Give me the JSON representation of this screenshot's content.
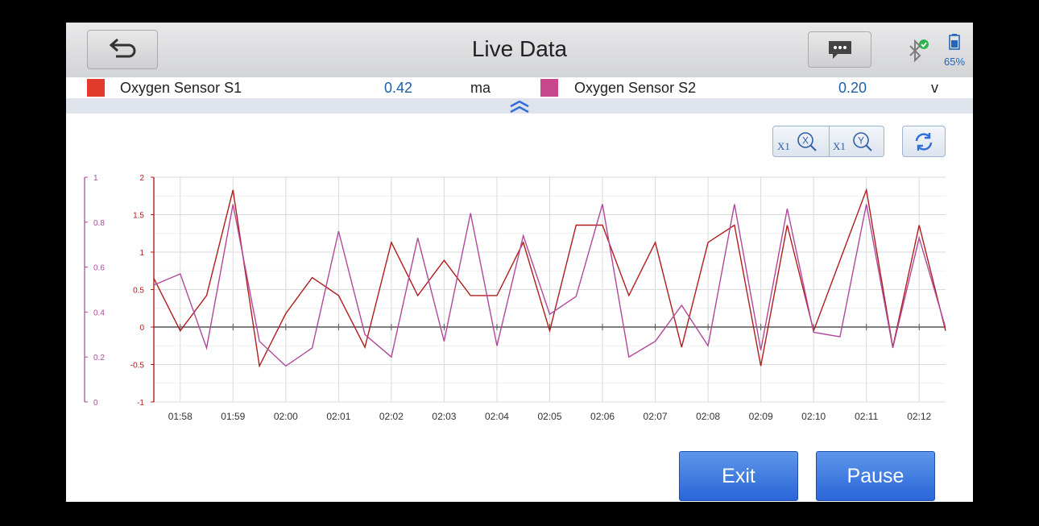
{
  "header": {
    "title": "Live Data",
    "battery_percent": "65%",
    "bluetooth_connected": true
  },
  "legend": [
    {
      "name": "Oxygen Sensor S1",
      "value": "0.42",
      "unit": "ma",
      "color": "#e23a2c"
    },
    {
      "name": "Oxygen Sensor S2",
      "value": "0.20",
      "unit": "v",
      "color": "#c8468c"
    }
  ],
  "toolbar": {
    "zoom_x_label": "X1",
    "zoom_y_label": "X1"
  },
  "buttons": {
    "exit_label": "Exit",
    "pause_label": "Pause"
  },
  "colors": {
    "accent": "#2f6fdc",
    "series1": "#b01c1c",
    "series2": "#b0489a"
  },
  "chart_data": {
    "type": "line",
    "x_ticks": [
      "01:58",
      "01:59",
      "02:00",
      "02:01",
      "02:02",
      "02:03",
      "02:04",
      "02:05",
      "02:06",
      "02:07",
      "02:08",
      "02:09",
      "02:10",
      "02:11",
      "02:12"
    ],
    "x_range": [
      "01:57.5",
      "02:12.5"
    ],
    "y_left": {
      "ticks": [
        "2",
        "1.5",
        "1",
        "0.5",
        "0",
        "-0.5",
        "-1"
      ],
      "ylim": [
        -1,
        2
      ]
    },
    "y_right": {
      "ticks": [
        "1",
        "0.8",
        "0.6",
        "0.4",
        "0.2",
        "0"
      ],
      "ylim": [
        0,
        1
      ]
    },
    "grid": true,
    "series": [
      {
        "axis": "left",
        "color": "#b01c1c",
        "x": [
          0,
          0.5,
          1,
          1.5,
          2,
          2.5,
          3,
          3.5,
          4,
          4.5,
          5,
          5.5,
          6,
          6.5,
          7,
          7.5,
          8,
          8.5,
          9,
          9.5,
          10,
          10.5,
          11,
          11.5,
          12,
          12.5,
          13,
          13.5,
          14,
          14.5,
          15
        ],
        "values": [
          0.65,
          -0.05,
          0.42,
          1.83,
          -0.52,
          0.18,
          0.66,
          0.42,
          -0.27,
          1.13,
          0.42,
          0.89,
          0.42,
          0.42,
          1.13,
          -0.05,
          1.36,
          1.36,
          0.42,
          1.13,
          -0.27,
          1.13,
          1.36,
          -0.52,
          1.36,
          -0.05,
          0.89,
          1.83,
          -0.27,
          1.36,
          -0.05
        ]
      },
      {
        "axis": "right",
        "color": "#b0489a",
        "x": [
          0,
          0.5,
          1,
          1.5,
          2,
          2.5,
          3,
          3.5,
          4,
          4.5,
          5,
          5.5,
          6,
          6.5,
          7,
          7.5,
          8,
          8.5,
          9,
          9.5,
          10,
          10.5,
          11,
          11.5,
          12,
          12.5,
          13,
          13.5,
          14,
          14.5,
          15
        ],
        "values": [
          0.52,
          0.57,
          0.24,
          0.88,
          0.27,
          0.16,
          0.24,
          0.76,
          0.3,
          0.2,
          0.73,
          0.27,
          0.84,
          0.25,
          0.74,
          0.39,
          0.47,
          0.88,
          0.2,
          0.27,
          0.43,
          0.25,
          0.88,
          0.23,
          0.86,
          0.31,
          0.29,
          0.88,
          0.24,
          0.73,
          0.33
        ]
      }
    ]
  }
}
